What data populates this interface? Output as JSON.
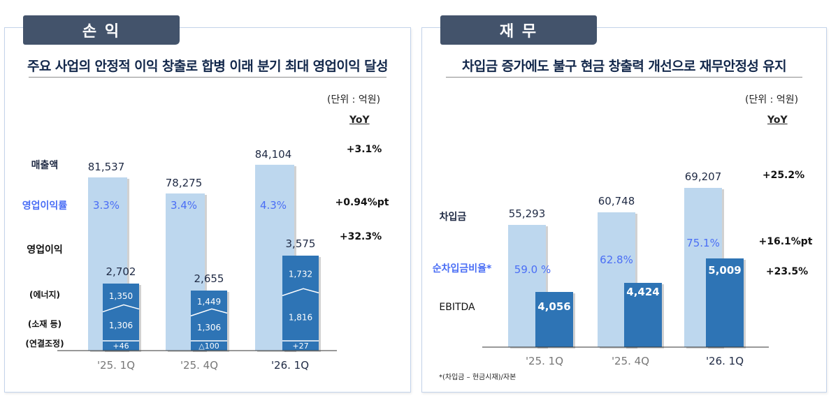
{
  "colors": {
    "tab_bg": "#43536b",
    "light_bar": "#bdd7ee",
    "dark_bar": "#2e74b5",
    "ratio_text": "#4a6ef5",
    "navy_text": "#1f2a44",
    "axis": "#333333"
  },
  "left": {
    "tab_label": "손 익",
    "headline": "주요 사업의 안정적 이익 창출로 합병 이래 분기 최대 영업이익 달성",
    "unit": "(단위 : 억원)",
    "yoy_header": "YoY",
    "row_labels": {
      "revenue": "매출액",
      "margin": "영업이익률",
      "op_income": "영업이익",
      "energy": "(에너지)",
      "materials": "(소재 등)",
      "consol": "(연결조정)"
    },
    "yoy": {
      "revenue": "+3.1%",
      "margin": "+0.94%pt",
      "op_income": "+32.3%"
    }
  },
  "right": {
    "tab_label": "재 무",
    "headline": "차입금 증가에도 불구 현금 창출력 개선으로 재무안정성 유지",
    "unit": "(단위 : 억원)",
    "yoy_header": "YoY",
    "row_labels": {
      "debt": "차입금",
      "net_debt_ratio": "순차입금비율*",
      "ebitda": "EBITDA"
    },
    "yoy": {
      "debt": "+25.2%",
      "net_debt_ratio": "+16.1%pt",
      "ebitda": "+23.5%"
    },
    "footnote": "*(차입금 – 현금시재)/자본"
  },
  "chart_data": [
    {
      "type": "bar",
      "title": "손익",
      "categories": [
        "'25. 1Q",
        "'25. 4Q",
        "'26. 1Q"
      ],
      "unit": "억원",
      "series": [
        {
          "name": "매출액",
          "values": [
            81537,
            78275,
            84104
          ],
          "labels": [
            "81,537",
            "78,275",
            "84,104"
          ]
        },
        {
          "name": "영업이익률",
          "values": [
            3.3,
            3.4,
            4.3
          ],
          "labels": [
            "3.3%",
            "3.4%",
            "4.3%"
          ]
        },
        {
          "name": "영업이익",
          "values": [
            2702,
            2655,
            3575
          ],
          "labels": [
            "2,702",
            "2,655",
            "3,575"
          ]
        },
        {
          "name": "에너지",
          "values": [
            1350,
            1449,
            1732
          ],
          "labels": [
            "1,350",
            "1,449",
            "1,732"
          ]
        },
        {
          "name": "소재 등",
          "values": [
            1306,
            1306,
            1816
          ],
          "labels": [
            "1,306",
            "1,306",
            "1,816"
          ]
        },
        {
          "name": "연결조정",
          "values": [
            46,
            -100,
            27
          ],
          "labels": [
            "+46",
            "△100",
            "+27"
          ]
        }
      ],
      "yoy": [
        "+3.1%",
        "+0.94%pt",
        "+32.3%"
      ]
    },
    {
      "type": "bar",
      "title": "재무",
      "categories": [
        "'25. 1Q",
        "'25. 4Q",
        "'26. 1Q"
      ],
      "unit": "억원",
      "series": [
        {
          "name": "차입금",
          "values": [
            55293,
            60748,
            69207
          ],
          "labels": [
            "55,293",
            "60,748",
            "69,207"
          ]
        },
        {
          "name": "순차입금비율",
          "values": [
            59.0,
            62.8,
            75.1
          ],
          "labels": [
            "59.0 %",
            "62.8%",
            "75.1%"
          ]
        },
        {
          "name": "EBITDA",
          "values": [
            4056,
            4424,
            5009
          ],
          "labels": [
            "4,056",
            "4,424",
            "5,009"
          ]
        }
      ],
      "yoy": [
        "+25.2%",
        "+16.1%pt",
        "+23.5%"
      ]
    }
  ]
}
